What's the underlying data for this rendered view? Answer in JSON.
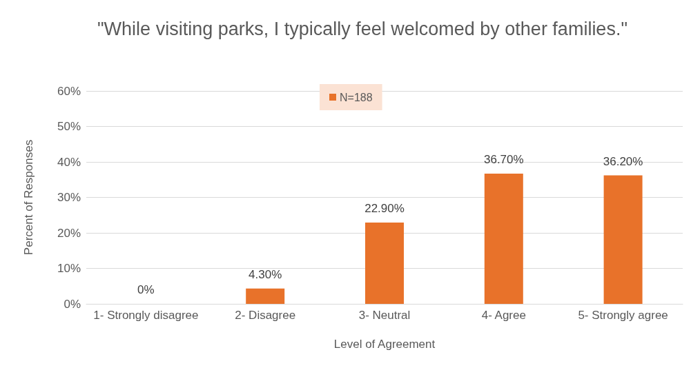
{
  "chart_data": {
    "type": "bar",
    "title": "\"While visiting parks, I typically feel welcomed by other families.\"",
    "xlabel": "Level of Agreement",
    "ylabel": "Percent of Responses",
    "categories": [
      "1- Strongly disagree",
      "2- Disagree",
      "3- Neutral",
      "4- Agree",
      "5- Strongly agree"
    ],
    "series": [
      {
        "name": "N=188",
        "color": "#e8722a",
        "values": [
          0,
          4.3,
          22.9,
          36.7,
          36.2
        ],
        "value_labels": [
          "0%",
          "4.30%",
          "22.90%",
          "36.70%",
          "36.20%"
        ]
      }
    ],
    "ylim": [
      0,
      60
    ],
    "yticks": [
      {
        "value": 0,
        "label": "0%"
      },
      {
        "value": 10,
        "label": "10%"
      },
      {
        "value": 20,
        "label": "20%"
      },
      {
        "value": 30,
        "label": "30%"
      },
      {
        "value": 40,
        "label": "40%"
      },
      {
        "value": 50,
        "label": "50%"
      },
      {
        "value": 60,
        "label": "60%"
      }
    ],
    "grid": "y",
    "legend": "top"
  }
}
